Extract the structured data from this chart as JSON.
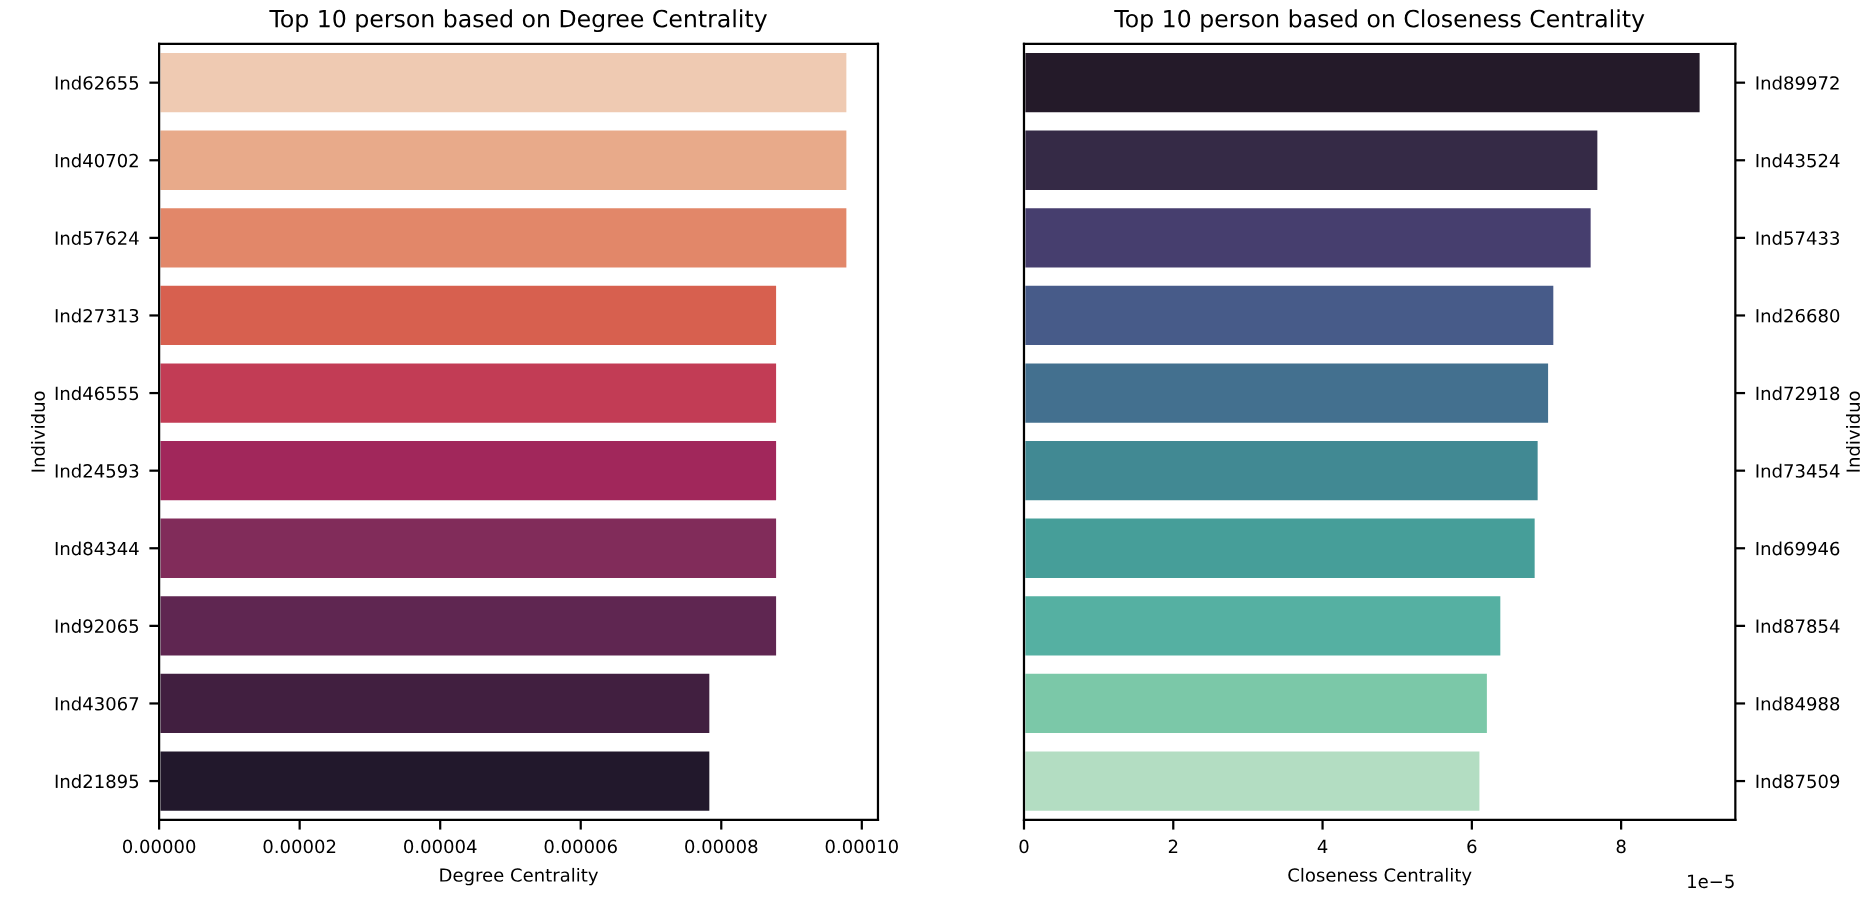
{
  "chart_data": [
    {
      "type": "bar",
      "orientation": "horizontal",
      "title": "Top 10 person based on Degree Centrality",
      "xlabel": "Degree Centrality",
      "ylabel": "Individuo",
      "categories": [
        "Ind62655",
        "Ind40702",
        "Ind57624",
        "Ind27313",
        "Ind46555",
        "Ind24593",
        "Ind84344",
        "Ind92065",
        "Ind43067",
        "Ind21895"
      ],
      "values": [
        9.8e-05,
        9.8e-05,
        9.8e-05,
        8.8e-05,
        8.8e-05,
        8.8e-05,
        8.8e-05,
        8.8e-05,
        7.85e-05,
        7.85e-05
      ],
      "colors": [
        "#efcab2",
        "#e8aa8a",
        "#e28769",
        "#d7604f",
        "#c23c55",
        "#a1275b",
        "#812c5a",
        "#5f2651",
        "#411f40",
        "#22182c"
      ],
      "xlim": [
        0,
        0.0001023
      ],
      "xticks": [
        {
          "value": 0,
          "label": "0.00000"
        },
        {
          "value": 2e-05,
          "label": "0.00002"
        },
        {
          "value": 4e-05,
          "label": "0.00004"
        },
        {
          "value": 6e-05,
          "label": "0.00006"
        },
        {
          "value": 8e-05,
          "label": "0.00008"
        },
        {
          "value": 0.0001,
          "label": "0.00010"
        }
      ],
      "grid": false,
      "legend": false
    },
    {
      "type": "bar",
      "orientation": "horizontal",
      "title": "Top 10 person based on Closeness Centrality",
      "xlabel": "Closeness Centrality",
      "ylabel": "Individuo",
      "categories": [
        "Ind89972",
        "Ind43524",
        "Ind57433",
        "Ind26680",
        "Ind72918",
        "Ind73454",
        "Ind69946",
        "Ind87854",
        "Ind84988",
        "Ind87509"
      ],
      "values": [
        9.07,
        7.7,
        7.61,
        7.11,
        7.04,
        6.9,
        6.86,
        6.4,
        6.22,
        6.12
      ],
      "colors": [
        "#241a29",
        "#352a46",
        "#463e6e",
        "#475b89",
        "#43708f",
        "#418993",
        "#469e99",
        "#55b0a2",
        "#7bc8a8",
        "#b3ddc2"
      ],
      "xlim": [
        0,
        9.53
      ],
      "xticks": [
        0,
        2,
        4,
        6,
        8
      ],
      "annotations": [
        "1e−5"
      ],
      "grid": false,
      "legend": false
    }
  ]
}
